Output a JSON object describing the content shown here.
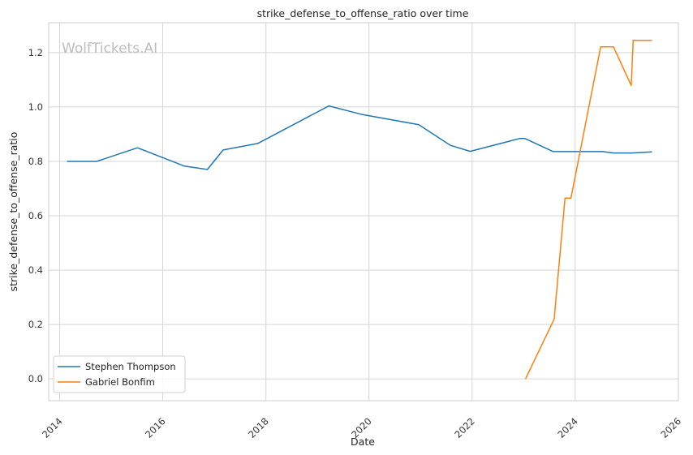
{
  "watermark": "WolfTickets.AI",
  "chart_data": {
    "type": "line",
    "title": "strike_defense_to_offense_ratio over time",
    "xlabel": "Date",
    "ylabel": "strike_defense_to_offense_ratio",
    "xlim": [
      "2013-10-15",
      "2026-01-01"
    ],
    "ylim": [
      -0.08,
      1.31
    ],
    "x_ticks": [
      "2014",
      "2016",
      "2018",
      "2020",
      "2022",
      "2024",
      "2026"
    ],
    "y_ticks": [
      "0.0",
      "0.2",
      "0.4",
      "0.6",
      "0.8",
      "1.0",
      "1.2"
    ],
    "grid": true,
    "legend_position": "lower-left",
    "series": [
      {
        "name": "Stephen Thompson",
        "color": "#1f77b4",
        "points": [
          [
            "2014-02-22",
            0.8
          ],
          [
            "2014-09-20",
            0.8
          ],
          [
            "2015-07-06",
            0.85
          ],
          [
            "2016-06-01",
            0.783
          ],
          [
            "2016-11-12",
            0.77
          ],
          [
            "2017-03-04",
            0.842
          ],
          [
            "2017-11-04",
            0.866
          ],
          [
            "2019-03-23",
            1.004
          ],
          [
            "2019-11-16",
            0.972
          ],
          [
            "2020-12-19",
            0.935
          ],
          [
            "2021-07-31",
            0.859
          ],
          [
            "2021-12-18",
            0.837
          ],
          [
            "2022-12-03",
            0.884
          ],
          [
            "2023-01-10",
            0.884
          ],
          [
            "2023-07-29",
            0.836
          ],
          [
            "2024-07-13",
            0.836
          ],
          [
            "2024-09-28",
            0.831
          ],
          [
            "2025-02-08",
            0.831
          ],
          [
            "2025-06-28",
            0.835
          ]
        ]
      },
      {
        "name": "Gabriel Bonfim",
        "color": "#ff7f0e",
        "points": [
          [
            "2023-01-14",
            0.0
          ],
          [
            "2023-08-05",
            0.22
          ],
          [
            "2023-10-21",
            0.665
          ],
          [
            "2023-12-02",
            0.665
          ],
          [
            "2024-06-29",
            1.221
          ],
          [
            "2024-09-28",
            1.221
          ],
          [
            "2025-02-01",
            1.079
          ],
          [
            "2025-02-15",
            1.245
          ],
          [
            "2025-06-28",
            1.245
          ]
        ]
      }
    ]
  }
}
